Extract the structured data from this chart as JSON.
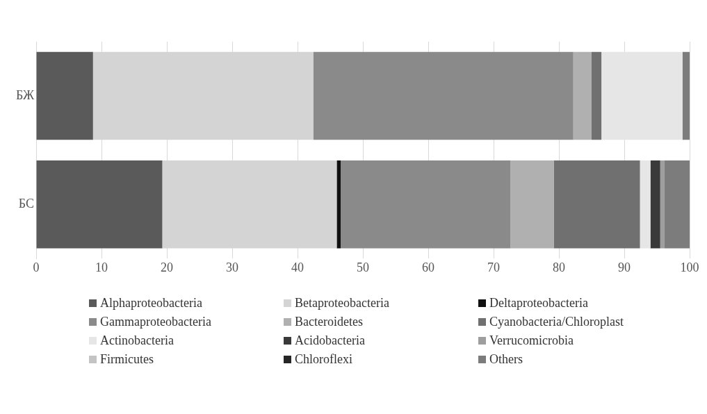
{
  "chart_data": {
    "type": "bar",
    "orientation": "horizontal",
    "stacked": true,
    "categories": [
      "БЖ",
      "БС"
    ],
    "xlim": [
      0,
      100
    ],
    "xticks": [
      0,
      10,
      20,
      30,
      40,
      50,
      60,
      70,
      80,
      90,
      100
    ],
    "grid": "x",
    "legend": "bottom",
    "series": [
      {
        "name": "Alphaproteobacteria",
        "color": "#5a5a5a",
        "values": [
          8.7,
          19.3
        ]
      },
      {
        "name": "Betaproteobacteria",
        "color": "#d4d4d4",
        "values": [
          33.7,
          26.7
        ]
      },
      {
        "name": "Deltaproteobacteria",
        "color": "#111111",
        "values": [
          0,
          0.6
        ]
      },
      {
        "name": "Gammaproteobacteria",
        "color": "#8a8a8a",
        "values": [
          39.8,
          26.0
        ]
      },
      {
        "name": "Bacteroidetes",
        "color": "#b0b0b0",
        "values": [
          2.8,
          6.6
        ]
      },
      {
        "name": "Cyanobacteria/Chloroplast",
        "color": "#707070",
        "values": [
          1.5,
          13.2
        ]
      },
      {
        "name": "Actinobacteria",
        "color": "#e6e6e6",
        "values": [
          12.4,
          1.6
        ]
      },
      {
        "name": "Acidobacteria",
        "color": "#3a3a3a",
        "values": [
          0,
          1.5
        ]
      },
      {
        "name": "Verrucomicrobia",
        "color": "#9e9e9e",
        "values": [
          0,
          0.6
        ]
      },
      {
        "name": "Firmicutes",
        "color": "#c4c4c4",
        "values": [
          0,
          0
        ]
      },
      {
        "name": "Chloroflexi",
        "color": "#262626",
        "values": [
          0,
          0
        ]
      },
      {
        "name": "Others",
        "color": "#7c7c7c",
        "values": [
          1.1,
          3.9
        ]
      }
    ]
  }
}
